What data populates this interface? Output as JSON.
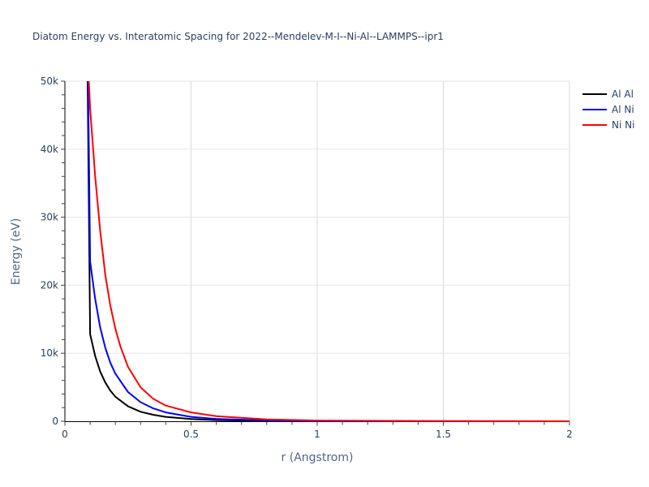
{
  "chart_title": "Diatom Energy vs. Interatomic Spacing for 2022--Mendelev-M-I--Ni-Al--LAMMPS--ipr1",
  "chart_data": {
    "type": "line",
    "title": "Diatom Energy vs. Interatomic Spacing for 2022--Mendelev-M-I--Ni-Al--LAMMPS--ipr1",
    "xlabel": "r (Angstrom)",
    "ylabel": "Energy (eV)",
    "xlim": [
      0,
      2
    ],
    "ylim": [
      0,
      50000
    ],
    "x_ticks": [
      0,
      0.5,
      1,
      1.5,
      2
    ],
    "x_tick_labels": [
      "0",
      "0.5",
      "1",
      "1.5",
      "2"
    ],
    "y_ticks": [
      0,
      10000,
      20000,
      30000,
      40000,
      50000
    ],
    "y_tick_labels": [
      "0",
      "10k",
      "20k",
      "30k",
      "40k",
      "50k"
    ],
    "grid": true,
    "legend_position": "top-right outside",
    "series": [
      {
        "name": "Al Al",
        "color": "#000000",
        "x": [
          0.09,
          0.1,
          0.12,
          0.14,
          0.16,
          0.18,
          0.2,
          0.25,
          0.3,
          0.35,
          0.4,
          0.5,
          0.6,
          0.8,
          1.0,
          1.5,
          2.0
        ],
        "y": [
          50000,
          12800,
          9600,
          7300,
          5700,
          4500,
          3600,
          2200,
          1400,
          950,
          650,
          330,
          170,
          60,
          20,
          5,
          0
        ]
      },
      {
        "name": "Al Ni",
        "color": "#0000ff",
        "x": [
          0.092,
          0.1,
          0.12,
          0.14,
          0.16,
          0.18,
          0.2,
          0.25,
          0.3,
          0.35,
          0.4,
          0.5,
          0.6,
          0.8,
          1.0,
          1.5,
          2.0
        ],
        "y": [
          50000,
          23500,
          18000,
          13800,
          10800,
          8600,
          7000,
          4300,
          2800,
          1900,
          1300,
          650,
          350,
          120,
          40,
          8,
          0
        ]
      },
      {
        "name": "Ni Ni",
        "color": "#ff0000",
        "x": [
          0.095,
          0.1,
          0.12,
          0.14,
          0.16,
          0.18,
          0.2,
          0.22,
          0.25,
          0.3,
          0.35,
          0.4,
          0.5,
          0.6,
          0.8,
          1.0,
          1.5,
          2.0
        ],
        "y": [
          50000,
          46000,
          36000,
          28000,
          21500,
          17000,
          13600,
          11000,
          8000,
          5000,
          3300,
          2300,
          1300,
          750,
          280,
          110,
          20,
          5
        ]
      }
    ]
  },
  "legend": {
    "items": [
      {
        "label": "Al Al",
        "color": "#000000"
      },
      {
        "label": "Al Ni",
        "color": "#0000ff"
      },
      {
        "label": "Ni Ni",
        "color": "#ff0000"
      }
    ]
  }
}
